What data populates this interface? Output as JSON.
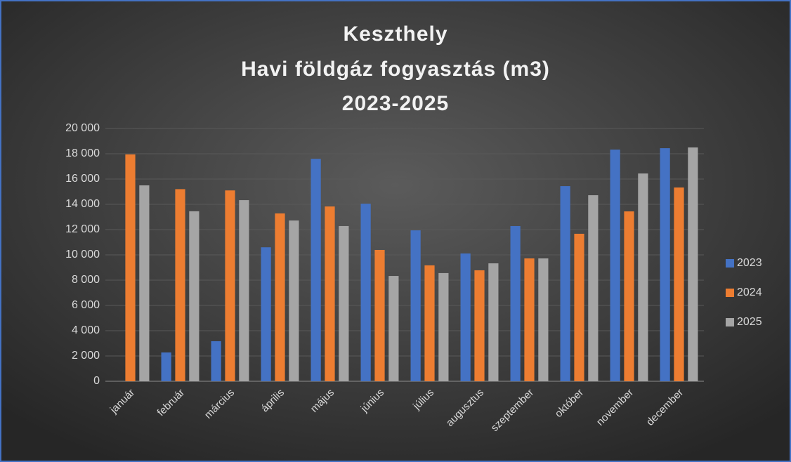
{
  "chart_data": {
    "type": "bar",
    "title": [
      "Keszthely",
      "Havi földgáz fogyasztás (m3)",
      "2023-2025"
    ],
    "categories": [
      "január",
      "február",
      "március",
      "április",
      "május",
      "június",
      "július",
      "augusztus",
      "szeptember",
      "október",
      "november",
      "december"
    ],
    "series": [
      {
        "name": "2023",
        "color": "#4472c4",
        "values": [
          null,
          2280,
          3170,
          10600,
          17600,
          14050,
          11940,
          10110,
          12280,
          15440,
          18330,
          18440
        ]
      },
      {
        "name": "2024",
        "color": "#ed7d31",
        "values": [
          17950,
          15200,
          15100,
          13280,
          13830,
          10390,
          9170,
          8780,
          9720,
          11670,
          13440,
          15330
        ]
      },
      {
        "name": "2025",
        "color": "#a5a5a5",
        "values": [
          15500,
          13450,
          14330,
          12720,
          12280,
          8330,
          8560,
          9330,
          9720,
          14720,
          16440,
          18500
        ]
      }
    ],
    "ylim": [
      0,
      20000
    ],
    "yticks": [
      0,
      {
        "value": 2000,
        "label": "2 000"
      },
      {
        "value": 4000,
        "label": "4 000"
      },
      {
        "value": 6000,
        "label": "6 000"
      },
      {
        "value": 8000,
        "label": "8 000"
      },
      {
        "value": 10000,
        "label": "10 000"
      },
      {
        "value": 12000,
        "label": "12 000"
      },
      {
        "value": 14000,
        "label": "14 000"
      },
      {
        "value": 16000,
        "label": "16 000"
      },
      {
        "value": 18000,
        "label": "18 000"
      },
      {
        "value": 20000,
        "label": "20 000"
      }
    ],
    "grid": true,
    "legend": "right"
  }
}
